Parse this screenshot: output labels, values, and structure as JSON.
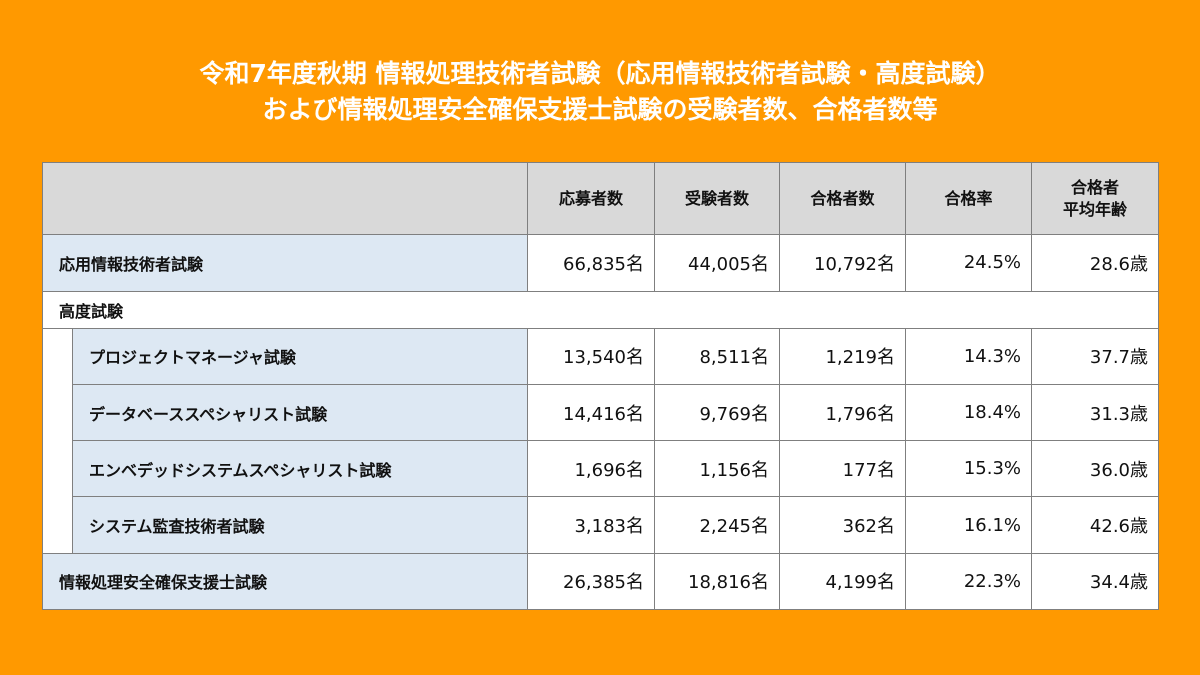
{
  "title": {
    "line1": "令和7年度秋期 情報処理技術者試験（応用情報技術者試験・高度試験）",
    "line2": "および情報処理安全確保支援士試験の受験者数、合格者数等"
  },
  "table": {
    "headers": [
      "応募者数",
      "受験者数",
      "合格者数",
      "合格率",
      "合格者",
      "平均年齢"
    ],
    "category_label": "高度試験",
    "rows": [
      {
        "name": "応用情報技術者試験",
        "values": [
          "66,835名",
          "44,005名",
          "10,792名",
          "24.5%",
          "28.6歳"
        ]
      },
      {
        "name": "プロジェクトマネージャ試験",
        "values": [
          "13,540名",
          "8,511名",
          "1,219名",
          "14.3%",
          "37.7歳"
        ]
      },
      {
        "name": "データベーススペシャリスト試験",
        "values": [
          "14,416名",
          "9,769名",
          "1,796名",
          "18.4%",
          "31.3歳"
        ]
      },
      {
        "name": "エンベデッドシステムスペシャリスト試験",
        "values": [
          "1,696名",
          "1,156名",
          "177名",
          "15.3%",
          "36.0歳"
        ]
      },
      {
        "name": "システム監査技術者試験",
        "values": [
          "3,183名",
          "2,245名",
          "362名",
          "16.1%",
          "42.6歳"
        ]
      },
      {
        "name": "情報処理安全確保支援士試験",
        "values": [
          "26,385名",
          "18,816名",
          "4,199名",
          "22.3%",
          "34.4歳"
        ]
      }
    ]
  }
}
